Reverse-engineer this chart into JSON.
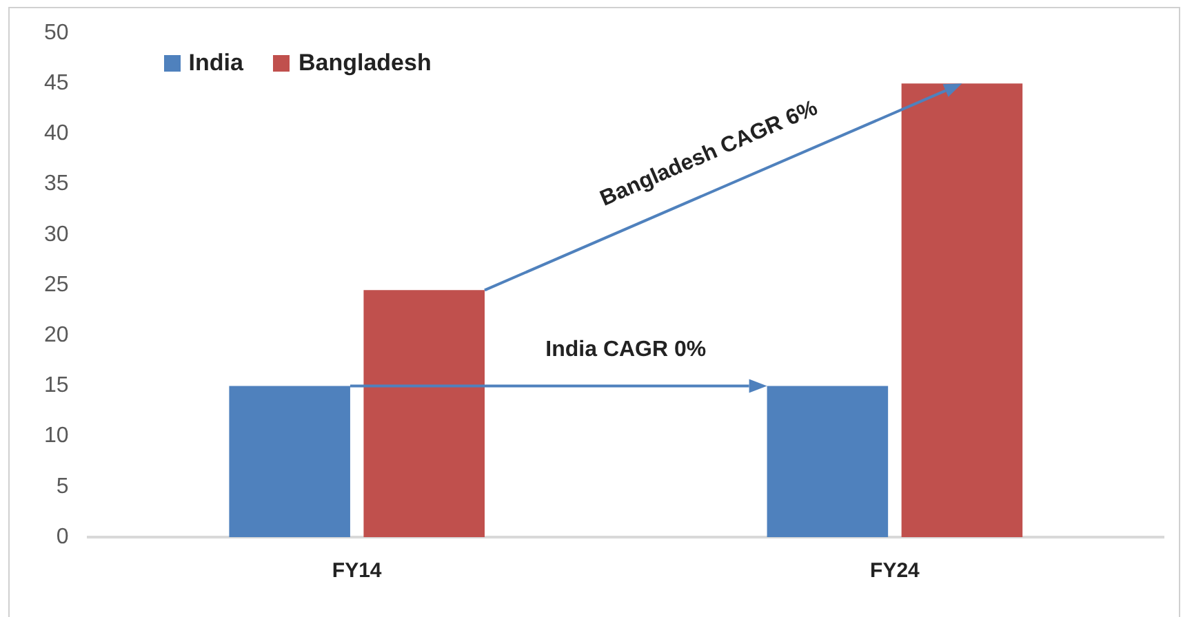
{
  "chart_data": {
    "type": "bar",
    "categories": [
      "FY14",
      "FY24"
    ],
    "series": [
      {
        "name": "India",
        "color": "#4f81bd",
        "values": [
          15,
          15
        ]
      },
      {
        "name": "Bangladesh",
        "color": "#c0504d",
        "values": [
          24.5,
          45
        ]
      }
    ],
    "ylim": [
      0,
      50
    ],
    "yticks": [
      0,
      5,
      10,
      15,
      20,
      25,
      30,
      35,
      40,
      45,
      50
    ],
    "grid": false,
    "legend": "top left",
    "annotations": [
      "India CAGR 0%",
      "Bangladesh CAGR 6%"
    ]
  }
}
